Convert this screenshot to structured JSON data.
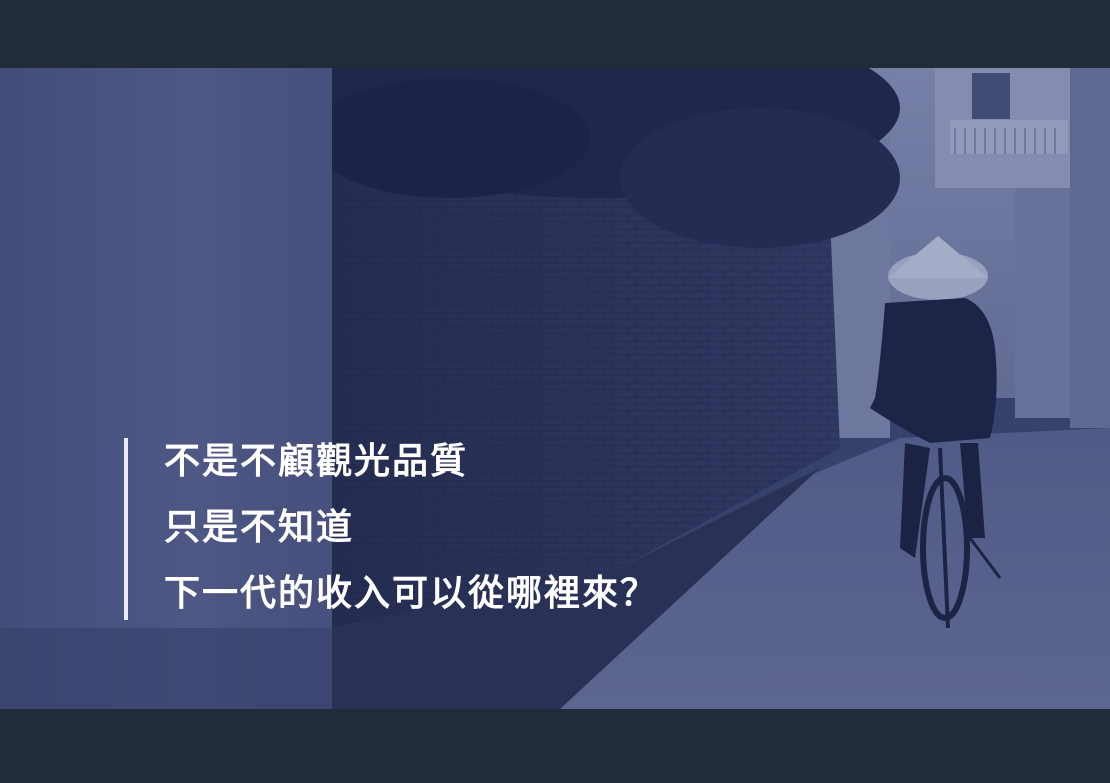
{
  "slide": {
    "background_color": "#222b38",
    "photo_tint": "#3b4670",
    "caption_color": "#ffffff",
    "caption_lines": [
      "不是不顧觀光品質",
      "只是不知道",
      "下一代的收入可以從哪裡來？"
    ]
  }
}
